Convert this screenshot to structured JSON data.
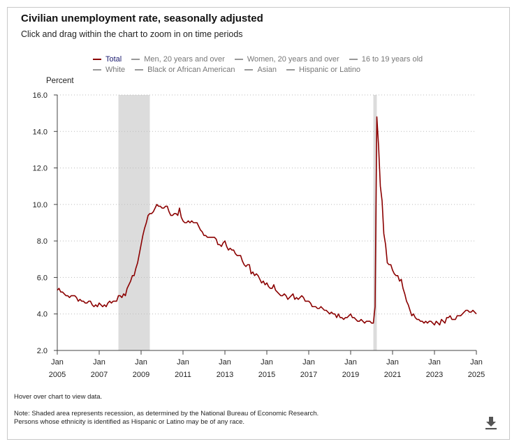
{
  "title": "Civilian unemployment rate, seasonally adjusted",
  "subtitle": "Click and drag within the chart to zoom in on time periods",
  "legend": {
    "row1": [
      "Total",
      "Men, 20 years and over",
      "Women, 20 years and over",
      "16 to 19 years old"
    ],
    "row2": [
      "White",
      "Black or African American",
      "Asian",
      "Hispanic or Latino"
    ],
    "active": "Total"
  },
  "hover_text": "Hover over chart to view data.",
  "note_line1": "Note: Shaded area represents recession, as determined by the National Bureau of Economic Research.",
  "note_line2": "Persons whose ethnicity is identified as Hispanic or Latino may be of any race.",
  "download_icon": "download-icon",
  "colors": {
    "series": "#8b0000",
    "recession": "#dcdcdc",
    "axis": "#444444",
    "grid": "#bbbbbb"
  },
  "chart_data": {
    "type": "line",
    "title": "Civilian unemployment rate, seasonally adjusted",
    "ylabel": "Percent",
    "xlabel": "",
    "ylim": [
      2.0,
      16.0
    ],
    "xlim": [
      2005.0,
      2025.0
    ],
    "y_ticks": [
      "2.0",
      "4.0",
      "6.0",
      "8.0",
      "10.0",
      "12.0",
      "14.0",
      "16.0"
    ],
    "x_ticks": [
      {
        "month": "Jan",
        "year": "2005",
        "x": 2005
      },
      {
        "month": "Jan",
        "year": "2007",
        "x": 2007
      },
      {
        "month": "Jan",
        "year": "2009",
        "x": 2009
      },
      {
        "month": "Jan",
        "year": "2011",
        "x": 2011
      },
      {
        "month": "Jan",
        "year": "2013",
        "x": 2013
      },
      {
        "month": "Jan",
        "year": "2015",
        "x": 2015
      },
      {
        "month": "Jan",
        "year": "2017",
        "x": 2017
      },
      {
        "month": "Jan",
        "year": "2019",
        "x": 2019
      },
      {
        "month": "Jan",
        "year": "2021",
        "x": 2021
      },
      {
        "month": "Jan",
        "year": "2023",
        "x": 2023
      },
      {
        "month": "Jan",
        "year": "2025",
        "x": 2025
      }
    ],
    "grid": true,
    "recessions": [
      {
        "start": 2007.917,
        "end": 2009.417
      },
      {
        "start": 2020.083,
        "end": 2020.25
      }
    ],
    "series": [
      {
        "name": "Total",
        "points": [
          [
            2005.0,
            5.3
          ],
          [
            2005.083,
            5.4
          ],
          [
            2005.167,
            5.2
          ],
          [
            2005.25,
            5.2
          ],
          [
            2005.333,
            5.1
          ],
          [
            2005.417,
            5.0
          ],
          [
            2005.5,
            5.0
          ],
          [
            2005.583,
            4.9
          ],
          [
            2005.667,
            5.0
          ],
          [
            2005.75,
            5.0
          ],
          [
            2005.833,
            5.0
          ],
          [
            2005.917,
            4.9
          ],
          [
            2006.0,
            4.7
          ],
          [
            2006.083,
            4.8
          ],
          [
            2006.167,
            4.7
          ],
          [
            2006.25,
            4.7
          ],
          [
            2006.333,
            4.6
          ],
          [
            2006.417,
            4.6
          ],
          [
            2006.5,
            4.7
          ],
          [
            2006.583,
            4.7
          ],
          [
            2006.667,
            4.5
          ],
          [
            2006.75,
            4.4
          ],
          [
            2006.833,
            4.5
          ],
          [
            2006.917,
            4.4
          ],
          [
            2007.0,
            4.6
          ],
          [
            2007.083,
            4.5
          ],
          [
            2007.167,
            4.4
          ],
          [
            2007.25,
            4.5
          ],
          [
            2007.333,
            4.4
          ],
          [
            2007.417,
            4.6
          ],
          [
            2007.5,
            4.7
          ],
          [
            2007.583,
            4.6
          ],
          [
            2007.667,
            4.7
          ],
          [
            2007.75,
            4.7
          ],
          [
            2007.833,
            4.7
          ],
          [
            2007.917,
            5.0
          ],
          [
            2008.0,
            5.0
          ],
          [
            2008.083,
            4.9
          ],
          [
            2008.167,
            5.1
          ],
          [
            2008.25,
            5.0
          ],
          [
            2008.333,
            5.4
          ],
          [
            2008.417,
            5.6
          ],
          [
            2008.5,
            5.8
          ],
          [
            2008.583,
            6.1
          ],
          [
            2008.667,
            6.1
          ],
          [
            2008.75,
            6.5
          ],
          [
            2008.833,
            6.8
          ],
          [
            2008.917,
            7.3
          ],
          [
            2009.0,
            7.8
          ],
          [
            2009.083,
            8.3
          ],
          [
            2009.167,
            8.7
          ],
          [
            2009.25,
            9.0
          ],
          [
            2009.333,
            9.4
          ],
          [
            2009.417,
            9.5
          ],
          [
            2009.5,
            9.5
          ],
          [
            2009.583,
            9.6
          ],
          [
            2009.667,
            9.8
          ],
          [
            2009.75,
            10.0
          ],
          [
            2009.833,
            9.9
          ],
          [
            2009.917,
            9.9
          ],
          [
            2010.0,
            9.8
          ],
          [
            2010.083,
            9.8
          ],
          [
            2010.167,
            9.9
          ],
          [
            2010.25,
            9.9
          ],
          [
            2010.333,
            9.6
          ],
          [
            2010.417,
            9.4
          ],
          [
            2010.5,
            9.4
          ],
          [
            2010.583,
            9.5
          ],
          [
            2010.667,
            9.5
          ],
          [
            2010.75,
            9.4
          ],
          [
            2010.833,
            9.8
          ],
          [
            2010.917,
            9.3
          ],
          [
            2011.0,
            9.1
          ],
          [
            2011.083,
            9.0
          ],
          [
            2011.167,
            9.0
          ],
          [
            2011.25,
            9.1
          ],
          [
            2011.333,
            9.0
          ],
          [
            2011.417,
            9.1
          ],
          [
            2011.5,
            9.0
          ],
          [
            2011.583,
            9.0
          ],
          [
            2011.667,
            9.0
          ],
          [
            2011.75,
            8.8
          ],
          [
            2011.833,
            8.6
          ],
          [
            2011.917,
            8.5
          ],
          [
            2012.0,
            8.3
          ],
          [
            2012.083,
            8.3
          ],
          [
            2012.167,
            8.2
          ],
          [
            2012.25,
            8.2
          ],
          [
            2012.333,
            8.2
          ],
          [
            2012.417,
            8.2
          ],
          [
            2012.5,
            8.2
          ],
          [
            2012.583,
            8.1
          ],
          [
            2012.667,
            7.8
          ],
          [
            2012.75,
            7.8
          ],
          [
            2012.833,
            7.7
          ],
          [
            2012.917,
            7.9
          ],
          [
            2013.0,
            8.0
          ],
          [
            2013.083,
            7.7
          ],
          [
            2013.167,
            7.5
          ],
          [
            2013.25,
            7.6
          ],
          [
            2013.333,
            7.5
          ],
          [
            2013.417,
            7.5
          ],
          [
            2013.5,
            7.3
          ],
          [
            2013.583,
            7.2
          ],
          [
            2013.667,
            7.2
          ],
          [
            2013.75,
            7.2
          ],
          [
            2013.833,
            6.9
          ],
          [
            2013.917,
            6.7
          ],
          [
            2014.0,
            6.6
          ],
          [
            2014.083,
            6.7
          ],
          [
            2014.167,
            6.7
          ],
          [
            2014.25,
            6.2
          ],
          [
            2014.333,
            6.3
          ],
          [
            2014.417,
            6.1
          ],
          [
            2014.5,
            6.2
          ],
          [
            2014.583,
            6.1
          ],
          [
            2014.667,
            5.9
          ],
          [
            2014.75,
            5.7
          ],
          [
            2014.833,
            5.8
          ],
          [
            2014.917,
            5.6
          ],
          [
            2015.0,
            5.7
          ],
          [
            2015.083,
            5.5
          ],
          [
            2015.167,
            5.4
          ],
          [
            2015.25,
            5.4
          ],
          [
            2015.333,
            5.6
          ],
          [
            2015.417,
            5.3
          ],
          [
            2015.5,
            5.2
          ],
          [
            2015.583,
            5.1
          ],
          [
            2015.667,
            5.0
          ],
          [
            2015.75,
            5.0
          ],
          [
            2015.833,
            5.1
          ],
          [
            2015.917,
            5.0
          ],
          [
            2016.0,
            4.8
          ],
          [
            2016.083,
            4.9
          ],
          [
            2016.167,
            5.0
          ],
          [
            2016.25,
            5.1
          ],
          [
            2016.333,
            4.8
          ],
          [
            2016.417,
            4.9
          ],
          [
            2016.5,
            4.8
          ],
          [
            2016.583,
            4.9
          ],
          [
            2016.667,
            5.0
          ],
          [
            2016.75,
            4.9
          ],
          [
            2016.833,
            4.7
          ],
          [
            2016.917,
            4.7
          ],
          [
            2017.0,
            4.7
          ],
          [
            2017.083,
            4.6
          ],
          [
            2017.167,
            4.4
          ],
          [
            2017.25,
            4.4
          ],
          [
            2017.333,
            4.4
          ],
          [
            2017.417,
            4.3
          ],
          [
            2017.5,
            4.3
          ],
          [
            2017.583,
            4.4
          ],
          [
            2017.667,
            4.3
          ],
          [
            2017.75,
            4.2
          ],
          [
            2017.833,
            4.2
          ],
          [
            2017.917,
            4.1
          ],
          [
            2018.0,
            4.0
          ],
          [
            2018.083,
            4.1
          ],
          [
            2018.167,
            4.0
          ],
          [
            2018.25,
            4.0
          ],
          [
            2018.333,
            3.8
          ],
          [
            2018.417,
            4.0
          ],
          [
            2018.5,
            3.8
          ],
          [
            2018.583,
            3.8
          ],
          [
            2018.667,
            3.7
          ],
          [
            2018.75,
            3.8
          ],
          [
            2018.833,
            3.8
          ],
          [
            2018.917,
            3.9
          ],
          [
            2019.0,
            4.0
          ],
          [
            2019.083,
            3.8
          ],
          [
            2019.167,
            3.8
          ],
          [
            2019.25,
            3.7
          ],
          [
            2019.333,
            3.6
          ],
          [
            2019.417,
            3.6
          ],
          [
            2019.5,
            3.7
          ],
          [
            2019.583,
            3.6
          ],
          [
            2019.667,
            3.5
          ],
          [
            2019.75,
            3.6
          ],
          [
            2019.833,
            3.6
          ],
          [
            2019.917,
            3.6
          ],
          [
            2020.0,
            3.5
          ],
          [
            2020.083,
            3.5
          ],
          [
            2020.167,
            4.4
          ],
          [
            2020.25,
            14.8
          ],
          [
            2020.333,
            13.2
          ],
          [
            2020.417,
            11.0
          ],
          [
            2020.5,
            10.2
          ],
          [
            2020.583,
            8.4
          ],
          [
            2020.667,
            7.8
          ],
          [
            2020.75,
            6.8
          ],
          [
            2020.833,
            6.7
          ],
          [
            2020.917,
            6.7
          ],
          [
            2021.0,
            6.4
          ],
          [
            2021.083,
            6.2
          ],
          [
            2021.167,
            6.1
          ],
          [
            2021.25,
            6.1
          ],
          [
            2021.333,
            5.8
          ],
          [
            2021.417,
            5.9
          ],
          [
            2021.5,
            5.4
          ],
          [
            2021.583,
            5.1
          ],
          [
            2021.667,
            4.7
          ],
          [
            2021.75,
            4.5
          ],
          [
            2021.833,
            4.2
          ],
          [
            2021.917,
            3.9
          ],
          [
            2022.0,
            4.0
          ],
          [
            2022.083,
            3.8
          ],
          [
            2022.167,
            3.7
          ],
          [
            2022.25,
            3.7
          ],
          [
            2022.333,
            3.6
          ],
          [
            2022.417,
            3.6
          ],
          [
            2022.5,
            3.5
          ],
          [
            2022.583,
            3.6
          ],
          [
            2022.667,
            3.5
          ],
          [
            2022.75,
            3.6
          ],
          [
            2022.833,
            3.6
          ],
          [
            2022.917,
            3.5
          ],
          [
            2023.0,
            3.4
          ],
          [
            2023.083,
            3.6
          ],
          [
            2023.167,
            3.5
          ],
          [
            2023.25,
            3.4
          ],
          [
            2023.333,
            3.7
          ],
          [
            2023.417,
            3.6
          ],
          [
            2023.5,
            3.5
          ],
          [
            2023.583,
            3.8
          ],
          [
            2023.667,
            3.8
          ],
          [
            2023.75,
            3.9
          ],
          [
            2023.833,
            3.7
          ],
          [
            2023.917,
            3.7
          ],
          [
            2024.0,
            3.7
          ],
          [
            2024.083,
            3.9
          ],
          [
            2024.167,
            3.9
          ],
          [
            2024.25,
            3.9
          ],
          [
            2024.333,
            4.0
          ],
          [
            2024.417,
            4.1
          ],
          [
            2024.5,
            4.2
          ],
          [
            2024.583,
            4.2
          ],
          [
            2024.667,
            4.1
          ],
          [
            2024.75,
            4.1
          ],
          [
            2024.833,
            4.2
          ],
          [
            2024.917,
            4.1
          ],
          [
            2025.0,
            4.0
          ]
        ]
      }
    ]
  }
}
